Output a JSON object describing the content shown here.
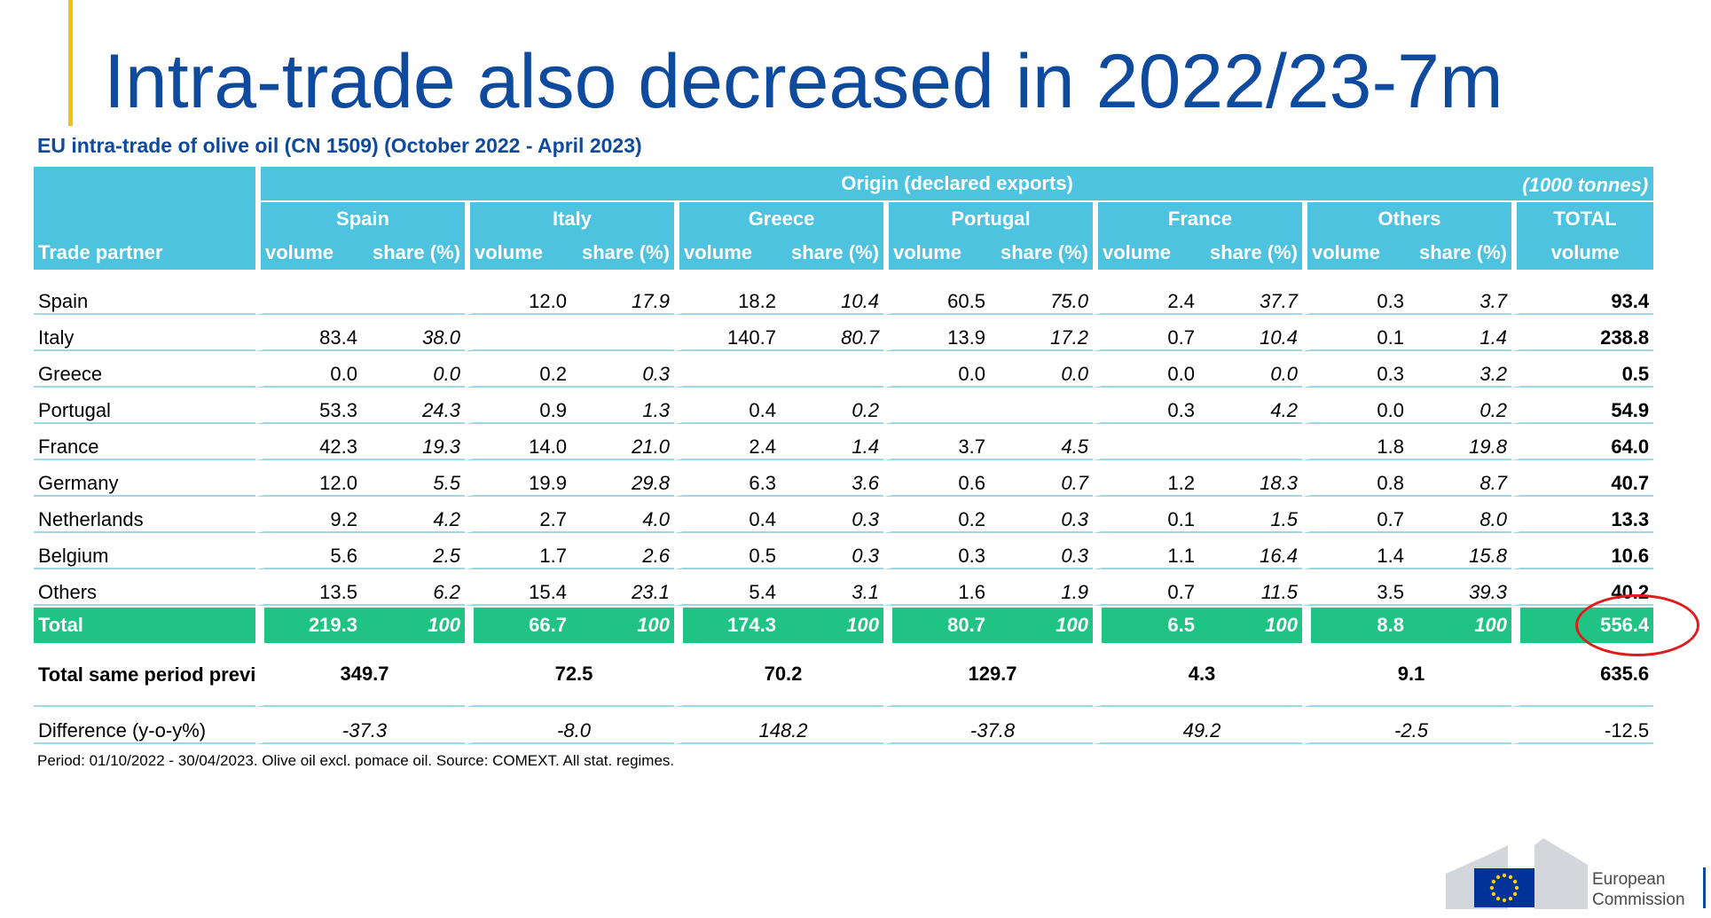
{
  "slide": {
    "title": "Intra-trade also decreased in 2022/23-7m",
    "table_title": "EU intra-trade of olive oil (CN 1509) (October 2022 - April 2023)",
    "footnote": "Period: 01/10/2022 - 30/04/2023. Olive oil excl. pomace oil. Source: COMEXT. All stat. regimes."
  },
  "table": {
    "origin_label": "Origin (declared exports)",
    "units": "(1000 tonnes)",
    "partner_label": "Trade partner",
    "volume_label": "volume",
    "share_label": "share (%)",
    "countries": [
      "Spain",
      "Italy",
      "Greece",
      "Portugal",
      "France",
      "Others"
    ],
    "total_label": "TOTAL",
    "rows": [
      {
        "label": "Spain",
        "vals": [
          "",
          "",
          "12.0",
          "17.9",
          "18.2",
          "10.4",
          "60.5",
          "75.0",
          "2.4",
          "37.7",
          "0.3",
          "3.7"
        ],
        "total": "93.4"
      },
      {
        "label": "Italy",
        "vals": [
          "83.4",
          "38.0",
          "",
          "",
          "140.7",
          "80.7",
          "13.9",
          "17.2",
          "0.7",
          "10.4",
          "0.1",
          "1.4"
        ],
        "total": "238.8"
      },
      {
        "label": "Greece",
        "vals": [
          "0.0",
          "0.0",
          "0.2",
          "0.3",
          "",
          "",
          "0.0",
          "0.0",
          "0.0",
          "0.0",
          "0.3",
          "3.2"
        ],
        "total": "0.5"
      },
      {
        "label": "Portugal",
        "vals": [
          "53.3",
          "24.3",
          "0.9",
          "1.3",
          "0.4",
          "0.2",
          "",
          "",
          "0.3",
          "4.2",
          "0.0",
          "0.2"
        ],
        "total": "54.9"
      },
      {
        "label": "France",
        "vals": [
          "42.3",
          "19.3",
          "14.0",
          "21.0",
          "2.4",
          "1.4",
          "3.7",
          "4.5",
          "",
          "",
          "1.8",
          "19.8"
        ],
        "total": "64.0"
      },
      {
        "label": "Germany",
        "vals": [
          "12.0",
          "5.5",
          "19.9",
          "29.8",
          "6.3",
          "3.6",
          "0.6",
          "0.7",
          "1.2",
          "18.3",
          "0.8",
          "8.7"
        ],
        "total": "40.7"
      },
      {
        "label": "Netherlands",
        "vals": [
          "9.2",
          "4.2",
          "2.7",
          "4.0",
          "0.4",
          "0.3",
          "0.2",
          "0.3",
          "0.1",
          "1.5",
          "0.7",
          "8.0"
        ],
        "total": "13.3"
      },
      {
        "label": "Belgium",
        "vals": [
          "5.6",
          "2.5",
          "1.7",
          "2.6",
          "0.5",
          "0.3",
          "0.3",
          "0.3",
          "1.1",
          "16.4",
          "1.4",
          "15.8"
        ],
        "total": "10.6"
      },
      {
        "label": "Others",
        "vals": [
          "13.5",
          "6.2",
          "15.4",
          "23.1",
          "5.4",
          "3.1",
          "1.6",
          "1.9",
          "0.7",
          "11.5",
          "3.5",
          "39.3"
        ],
        "total": "40.2"
      }
    ],
    "total_row": {
      "label": "Total",
      "vals": [
        "219.3",
        "100",
        "66.7",
        "100",
        "174.3",
        "100",
        "80.7",
        "100",
        "6.5",
        "100",
        "8.8",
        "100"
      ],
      "total": "556.4"
    },
    "previous_row": {
      "label": "Total same period previous campaign",
      "vals": [
        "349.7",
        "72.5",
        "70.2",
        "129.7",
        "4.3",
        "9.1"
      ],
      "total": "635.6"
    },
    "difference_row": {
      "label": "Difference (y-o-y%)",
      "vals": [
        "-37.3",
        "-8.0",
        "148.2",
        "-37.8",
        "49.2",
        "-2.5"
      ],
      "total": "-12.5"
    }
  },
  "logo": {
    "line1": "European",
    "line2": "Commission"
  },
  "colors": {
    "title": "#0e4a9e",
    "header": "#4ec3df",
    "total_row": "#1fc384",
    "accent": "#f4c20d",
    "circle": "#e01b1b"
  }
}
